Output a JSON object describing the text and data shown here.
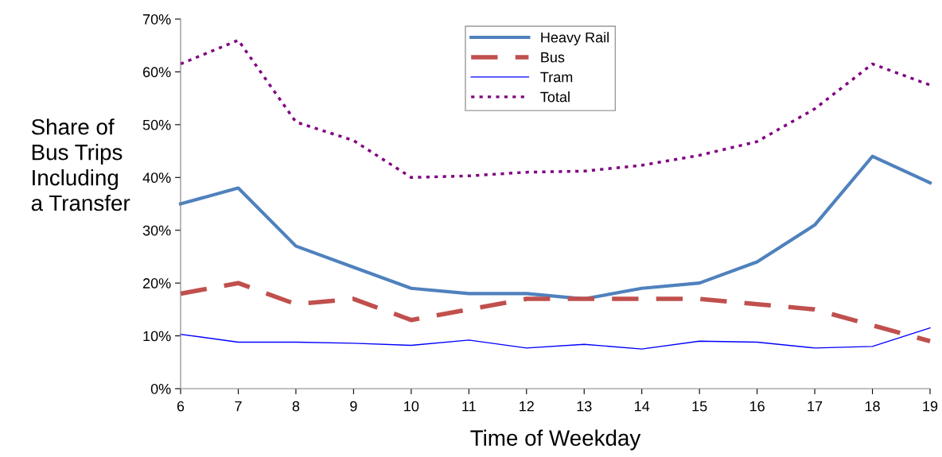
{
  "chart_data": {
    "type": "line",
    "xlabel": "Time of Weekday",
    "ylabel": "Share of\nBus Trips\nIncluding\na Transfer",
    "x": [
      6,
      7,
      8,
      9,
      10,
      11,
      12,
      13,
      14,
      15,
      16,
      17,
      18,
      19
    ],
    "series": [
      {
        "name": "Heavy Rail",
        "color": "#4f81bd",
        "line_style": "solid",
        "values": [
          35,
          38,
          27,
          23,
          19,
          18,
          18,
          17,
          19,
          20,
          24,
          31,
          44,
          39
        ]
      },
      {
        "name": "Bus",
        "color": "#c0504d",
        "line_style": "dashed",
        "values": [
          18,
          20,
          16,
          17,
          13,
          15,
          17,
          17,
          17,
          17,
          16,
          15,
          12,
          9
        ]
      },
      {
        "name": "Tram",
        "color": "#0000ff",
        "line_style": "solid",
        "values": [
          10.3,
          8.8,
          8.8,
          8.6,
          8.2,
          9.2,
          7.7,
          8.4,
          7.5,
          9.0,
          8.8,
          7.7,
          8.0,
          11.5
        ]
      },
      {
        "name": "Total",
        "color": "#800080",
        "line_style": "dotted",
        "values": [
          61.5,
          66,
          50.5,
          47,
          40,
          40.3,
          41,
          41.2,
          42.3,
          44.2,
          46.8,
          53,
          61.5,
          57.5
        ]
      }
    ],
    "xlim": [
      6,
      19
    ],
    "xticks": [
      6,
      7,
      8,
      9,
      10,
      11,
      12,
      13,
      14,
      15,
      16,
      17,
      18,
      19
    ],
    "ylim": [
      0,
      70
    ],
    "yticks": [
      {
        "value": 0,
        "label": "0%"
      },
      {
        "value": 10,
        "label": "10%"
      },
      {
        "value": 20,
        "label": "20%"
      },
      {
        "value": 30,
        "label": "30%"
      },
      {
        "value": 40,
        "label": "40%"
      },
      {
        "value": 50,
        "label": "50%"
      },
      {
        "value": 60,
        "label": "60%"
      },
      {
        "value": 70,
        "label": "70%"
      }
    ],
    "grid": false,
    "legend": "top",
    "marker": "none"
  }
}
